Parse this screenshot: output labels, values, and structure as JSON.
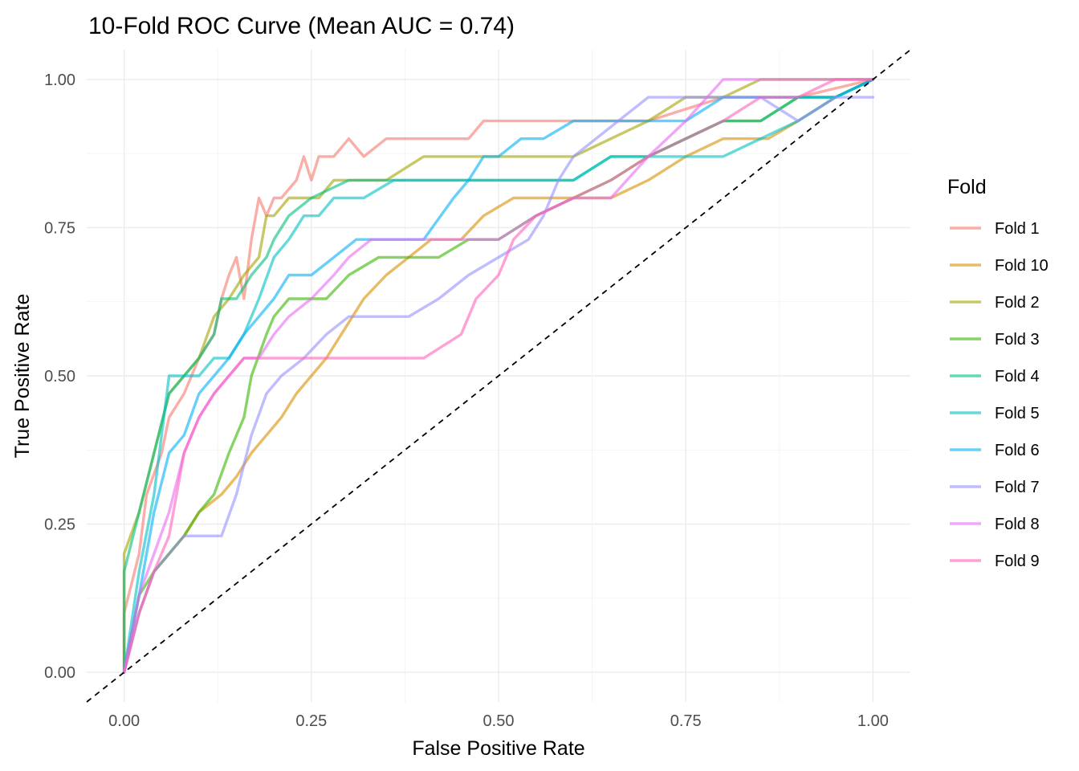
{
  "chart_data": {
    "type": "line",
    "title": "10-Fold ROC Curve (Mean AUC = 0.74)",
    "xlabel": "False Positive Rate",
    "ylabel": "True Positive Rate",
    "xlim": [
      -0.05,
      1.05
    ],
    "ylim": [
      -0.05,
      1.05
    ],
    "x_ticks": [
      "0.00",
      "0.25",
      "0.50",
      "0.75",
      "1.00"
    ],
    "y_ticks": [
      "0.00",
      "0.25",
      "0.50",
      "0.75",
      "1.00"
    ],
    "grid": true,
    "legend_title": "Fold",
    "legend_position": "right",
    "reference_line": {
      "x": [
        -0.05,
        1.05
      ],
      "y": [
        -0.05,
        1.05
      ],
      "style": "dashed"
    },
    "series": [
      {
        "name": "Fold 1",
        "color": "#F8766D",
        "x": [
          0,
          0,
          0.02,
          0.03,
          0.05,
          0.06,
          0.08,
          0.09,
          0.1,
          0.12,
          0.13,
          0.14,
          0.15,
          0.16,
          0.17,
          0.18,
          0.19,
          0.2,
          0.21,
          0.23,
          0.24,
          0.25,
          0.26,
          0.28,
          0.3,
          0.32,
          0.35,
          0.4,
          0.46,
          0.48,
          0.5,
          0.6,
          0.7,
          0.8,
          0.9,
          1
        ],
        "y": [
          0,
          0.1,
          0.2,
          0.3,
          0.37,
          0.43,
          0.47,
          0.5,
          0.53,
          0.57,
          0.63,
          0.67,
          0.7,
          0.63,
          0.73,
          0.8,
          0.77,
          0.8,
          0.8,
          0.83,
          0.87,
          0.83,
          0.87,
          0.87,
          0.9,
          0.87,
          0.9,
          0.9,
          0.9,
          0.93,
          0.93,
          0.93,
          0.93,
          0.97,
          0.97,
          1
        ]
      },
      {
        "name": "Fold 10",
        "color": "#D89000",
        "x": [
          0,
          0.02,
          0.04,
          0.06,
          0.08,
          0.1,
          0.13,
          0.15,
          0.17,
          0.19,
          0.21,
          0.23,
          0.25,
          0.27,
          0.29,
          0.32,
          0.35,
          0.38,
          0.41,
          0.45,
          0.48,
          0.52,
          0.56,
          0.6,
          0.65,
          0.7,
          0.75,
          0.8,
          0.86,
          0.9,
          0.95,
          1
        ],
        "y": [
          0,
          0.1,
          0.17,
          0.2,
          0.23,
          0.27,
          0.3,
          0.33,
          0.37,
          0.4,
          0.43,
          0.47,
          0.5,
          0.53,
          0.57,
          0.63,
          0.67,
          0.7,
          0.73,
          0.73,
          0.77,
          0.8,
          0.8,
          0.8,
          0.8,
          0.83,
          0.87,
          0.9,
          0.9,
          0.93,
          0.97,
          1
        ]
      },
      {
        "name": "Fold 2",
        "color": "#A3A500",
        "x": [
          0,
          0,
          0.02,
          0.04,
          0.06,
          0.08,
          0.1,
          0.12,
          0.14,
          0.16,
          0.18,
          0.19,
          0.2,
          0.22,
          0.24,
          0.26,
          0.28,
          0.3,
          0.32,
          0.35,
          0.4,
          0.5,
          0.6,
          0.65,
          0.7,
          0.75,
          0.8,
          0.85,
          0.9,
          1
        ],
        "y": [
          0,
          0.2,
          0.27,
          0.37,
          0.47,
          0.5,
          0.53,
          0.6,
          0.63,
          0.67,
          0.7,
          0.77,
          0.77,
          0.8,
          0.8,
          0.8,
          0.83,
          0.83,
          0.83,
          0.83,
          0.87,
          0.87,
          0.87,
          0.9,
          0.93,
          0.97,
          0.97,
          1,
          1,
          1
        ]
      },
      {
        "name": "Fold 3",
        "color": "#39B600",
        "x": [
          0,
          0.02,
          0.04,
          0.06,
          0.08,
          0.1,
          0.12,
          0.14,
          0.16,
          0.17,
          0.19,
          0.2,
          0.22,
          0.24,
          0.27,
          0.3,
          0.34,
          0.38,
          0.42,
          0.46,
          0.5,
          0.55,
          0.6,
          0.65,
          0.7,
          0.75,
          0.8,
          0.85,
          0.9,
          0.95,
          1
        ],
        "y": [
          0,
          0.13,
          0.17,
          0.2,
          0.23,
          0.27,
          0.3,
          0.37,
          0.43,
          0.5,
          0.57,
          0.6,
          0.63,
          0.63,
          0.63,
          0.67,
          0.7,
          0.7,
          0.7,
          0.73,
          0.73,
          0.77,
          0.8,
          0.83,
          0.87,
          0.9,
          0.93,
          0.93,
          0.97,
          0.97,
          1
        ]
      },
      {
        "name": "Fold 4",
        "color": "#00BF7D",
        "x": [
          0,
          0,
          0.02,
          0.04,
          0.06,
          0.08,
          0.1,
          0.12,
          0.13,
          0.15,
          0.17,
          0.19,
          0.2,
          0.22,
          0.25,
          0.3,
          0.35,
          0.4,
          0.45,
          0.5,
          0.55,
          0.6,
          0.65,
          0.7,
          0.75,
          0.8,
          0.85,
          0.9,
          0.95,
          1
        ],
        "y": [
          0,
          0.17,
          0.27,
          0.37,
          0.47,
          0.5,
          0.53,
          0.57,
          0.63,
          0.63,
          0.67,
          0.7,
          0.73,
          0.77,
          0.8,
          0.83,
          0.83,
          0.83,
          0.83,
          0.83,
          0.83,
          0.83,
          0.87,
          0.87,
          0.9,
          0.93,
          0.93,
          0.97,
          0.97,
          1
        ]
      },
      {
        "name": "Fold 5",
        "color": "#00BFC4",
        "x": [
          0,
          0.02,
          0.04,
          0.05,
          0.06,
          0.08,
          0.1,
          0.12,
          0.14,
          0.16,
          0.18,
          0.2,
          0.22,
          0.24,
          0.26,
          0.28,
          0.3,
          0.32,
          0.36,
          0.4,
          0.45,
          0.5,
          0.55,
          0.6,
          0.65,
          0.7,
          0.75,
          0.8,
          0.85,
          0.9,
          0.95,
          1
        ],
        "y": [
          0,
          0.17,
          0.3,
          0.4,
          0.5,
          0.5,
          0.5,
          0.53,
          0.53,
          0.57,
          0.63,
          0.7,
          0.73,
          0.77,
          0.77,
          0.8,
          0.8,
          0.8,
          0.83,
          0.83,
          0.83,
          0.83,
          0.83,
          0.83,
          0.87,
          0.87,
          0.87,
          0.87,
          0.9,
          0.93,
          0.97,
          1
        ]
      },
      {
        "name": "Fold 6",
        "color": "#00B0F6",
        "x": [
          0,
          0.02,
          0.04,
          0.06,
          0.08,
          0.1,
          0.12,
          0.14,
          0.16,
          0.18,
          0.2,
          0.22,
          0.25,
          0.28,
          0.31,
          0.35,
          0.4,
          0.44,
          0.46,
          0.48,
          0.5,
          0.53,
          0.56,
          0.6,
          0.65,
          0.7,
          0.75,
          0.8,
          0.85,
          0.9,
          0.95,
          1
        ],
        "y": [
          0,
          0.13,
          0.27,
          0.37,
          0.4,
          0.47,
          0.5,
          0.53,
          0.57,
          0.6,
          0.63,
          0.67,
          0.67,
          0.7,
          0.73,
          0.73,
          0.73,
          0.8,
          0.83,
          0.87,
          0.87,
          0.9,
          0.9,
          0.93,
          0.93,
          0.93,
          0.93,
          0.97,
          0.97,
          0.97,
          0.97,
          1
        ]
      },
      {
        "name": "Fold 7",
        "color": "#9590FF",
        "x": [
          0,
          0.02,
          0.04,
          0.06,
          0.08,
          0.1,
          0.13,
          0.15,
          0.17,
          0.19,
          0.21,
          0.24,
          0.27,
          0.3,
          0.34,
          0.38,
          0.42,
          0.46,
          0.5,
          0.54,
          0.56,
          0.58,
          0.6,
          0.63,
          0.66,
          0.7,
          0.75,
          0.8,
          0.85,
          0.9,
          0.95,
          1
        ],
        "y": [
          0,
          0.1,
          0.17,
          0.2,
          0.23,
          0.23,
          0.23,
          0.3,
          0.4,
          0.47,
          0.5,
          0.53,
          0.57,
          0.6,
          0.6,
          0.6,
          0.63,
          0.67,
          0.7,
          0.73,
          0.77,
          0.83,
          0.87,
          0.9,
          0.93,
          0.97,
          0.97,
          0.97,
          0.97,
          0.93,
          0.97,
          0.97
        ]
      },
      {
        "name": "Fold 8",
        "color": "#E76BF3",
        "x": [
          0,
          0.02,
          0.04,
          0.06,
          0.08,
          0.1,
          0.12,
          0.14,
          0.16,
          0.18,
          0.2,
          0.22,
          0.25,
          0.28,
          0.3,
          0.33,
          0.36,
          0.4,
          0.45,
          0.5,
          0.55,
          0.6,
          0.65,
          0.7,
          0.75,
          0.8,
          0.85,
          0.9,
          0.95,
          1
        ],
        "y": [
          0,
          0.13,
          0.2,
          0.27,
          0.37,
          0.43,
          0.47,
          0.5,
          0.53,
          0.53,
          0.57,
          0.6,
          0.63,
          0.67,
          0.7,
          0.73,
          0.73,
          0.73,
          0.73,
          0.73,
          0.77,
          0.8,
          0.8,
          0.87,
          0.93,
          1,
          1,
          1,
          1,
          1
        ]
      },
      {
        "name": "Fold 9",
        "color": "#FF62BC",
        "x": [
          0,
          0.02,
          0.04,
          0.06,
          0.08,
          0.1,
          0.12,
          0.14,
          0.16,
          0.18,
          0.2,
          0.22,
          0.25,
          0.3,
          0.35,
          0.4,
          0.45,
          0.47,
          0.5,
          0.52,
          0.55,
          0.6,
          0.65,
          0.7,
          0.75,
          0.8,
          0.85,
          0.9,
          0.95,
          1
        ],
        "y": [
          0,
          0.1,
          0.17,
          0.23,
          0.37,
          0.43,
          0.47,
          0.5,
          0.53,
          0.53,
          0.53,
          0.53,
          0.53,
          0.53,
          0.53,
          0.53,
          0.57,
          0.63,
          0.67,
          0.73,
          0.77,
          0.8,
          0.83,
          0.87,
          0.9,
          0.93,
          0.97,
          0.97,
          1,
          1
        ]
      }
    ]
  }
}
